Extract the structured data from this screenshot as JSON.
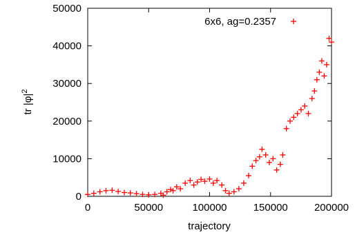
{
  "chart_data": {
    "type": "scatter",
    "xlabel": "trajectory",
    "ylabel_base": "tr |φ|",
    "ylabel_sup": "2",
    "xlim": [
      0,
      200000
    ],
    "ylim": [
      0,
      50000
    ],
    "x_ticks": [
      0,
      50000,
      100000,
      150000,
      200000
    ],
    "x_tick_labels": [
      "0",
      "50000",
      "100000",
      "150000",
      "200000"
    ],
    "y_ticks": [
      0,
      10000,
      20000,
      30000,
      40000,
      50000
    ],
    "y_tick_labels": [
      "0",
      "10000",
      "20000",
      "30000",
      "40000",
      "50000"
    ],
    "grid": false,
    "legend_position": "top-right",
    "series": [
      {
        "name": "6x6, ag=0.2357",
        "color": "#ff0000",
        "marker": "+",
        "x": [
          0,
          5000,
          10000,
          15000,
          20000,
          25000,
          30000,
          35000,
          40000,
          45000,
          50000,
          55000,
          60000,
          62000,
          65000,
          68000,
          70000,
          73000,
          76000,
          80000,
          84000,
          87000,
          90000,
          93000,
          96000,
          100000,
          103000,
          106000,
          110000,
          113000,
          116000,
          120000,
          124000,
          128000,
          132000,
          135000,
          138000,
          141000,
          143000,
          146000,
          149000,
          152000,
          155000,
          158000,
          160000,
          163000,
          166000,
          169000,
          172000,
          175000,
          178000,
          181000,
          184000,
          186000,
          188000,
          190000,
          192000,
          194000,
          196000,
          198000,
          200000
        ],
        "y": [
          500,
          800,
          1200,
          1500,
          1600,
          1300,
          1000,
          900,
          700,
          500,
          400,
          500,
          800,
          300,
          1200,
          1800,
          1500,
          2500,
          2000,
          3500,
          4200,
          3000,
          3800,
          4500,
          4000,
          4600,
          3500,
          4200,
          3000,
          1500,
          800,
          1200,
          2000,
          3500,
          5500,
          8000,
          9500,
          10500,
          12500,
          11000,
          9000,
          10000,
          7000,
          8500,
          11000,
          18000,
          20000,
          21000,
          22000,
          23000,
          24000,
          22000,
          26000,
          28000,
          31000,
          33000,
          36000,
          32000,
          35000,
          42000,
          41000
        ]
      }
    ]
  }
}
